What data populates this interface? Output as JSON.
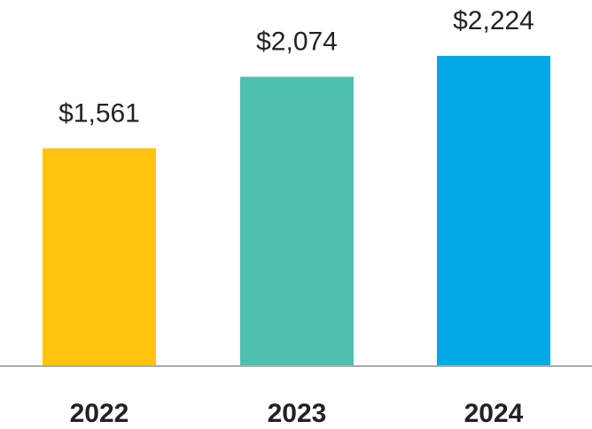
{
  "chart_data": {
    "type": "bar",
    "categories": [
      "2022",
      "2023",
      "2024"
    ],
    "values": [
      1561,
      2074,
      2224
    ],
    "data_labels": [
      "$1,561",
      "$2,074",
      "$2,224"
    ],
    "colors": [
      "#FFC20E",
      "#4DBFAE",
      "#00A9E4"
    ],
    "title": "",
    "xlabel": "",
    "ylabel": "",
    "ylim": [
      0,
      2224
    ],
    "grid": false,
    "legend": "none",
    "baseline_color": "#AAAAAA"
  }
}
